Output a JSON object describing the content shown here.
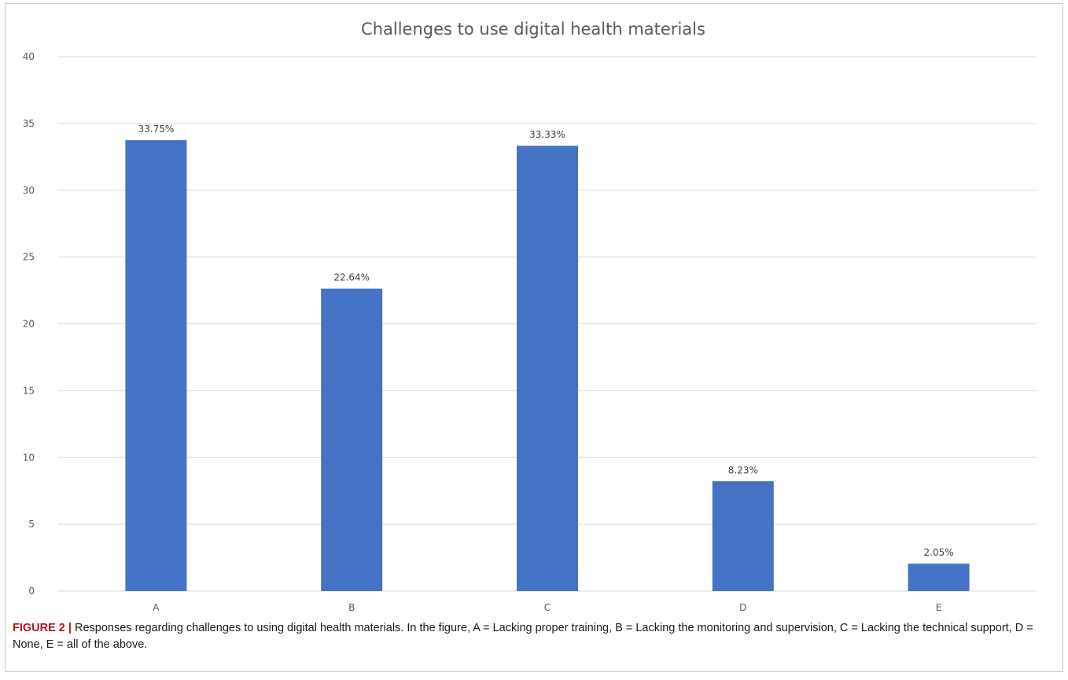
{
  "chart_data": {
    "type": "bar",
    "title": "Challenges to use digital health materials",
    "categories": [
      "A",
      "B",
      "C",
      "D",
      "E"
    ],
    "values": [
      33.75,
      22.64,
      33.33,
      8.23,
      2.05
    ],
    "data_labels": [
      "33.75%",
      "22.64%",
      "33.33%",
      "8.23%",
      "2.05%"
    ],
    "y_ticks": [
      "0",
      "5",
      "10",
      "15",
      "20",
      "25",
      "30",
      "35",
      "40"
    ],
    "ylim": [
      0,
      40
    ],
    "xlabel": "",
    "ylabel": "",
    "grid": true,
    "bar_color": "#4472c4",
    "gridline_color": "#d9d9d9"
  },
  "caption": {
    "label": "FIGURE 2 |",
    "text": "Responses regarding challenges to using digital health materials. In the figure, A = Lacking proper training, B = Lacking the monitoring and supervision, C = Lacking the technical support, D = None, E = all of the above.",
    "label_color": "#b5121b"
  }
}
